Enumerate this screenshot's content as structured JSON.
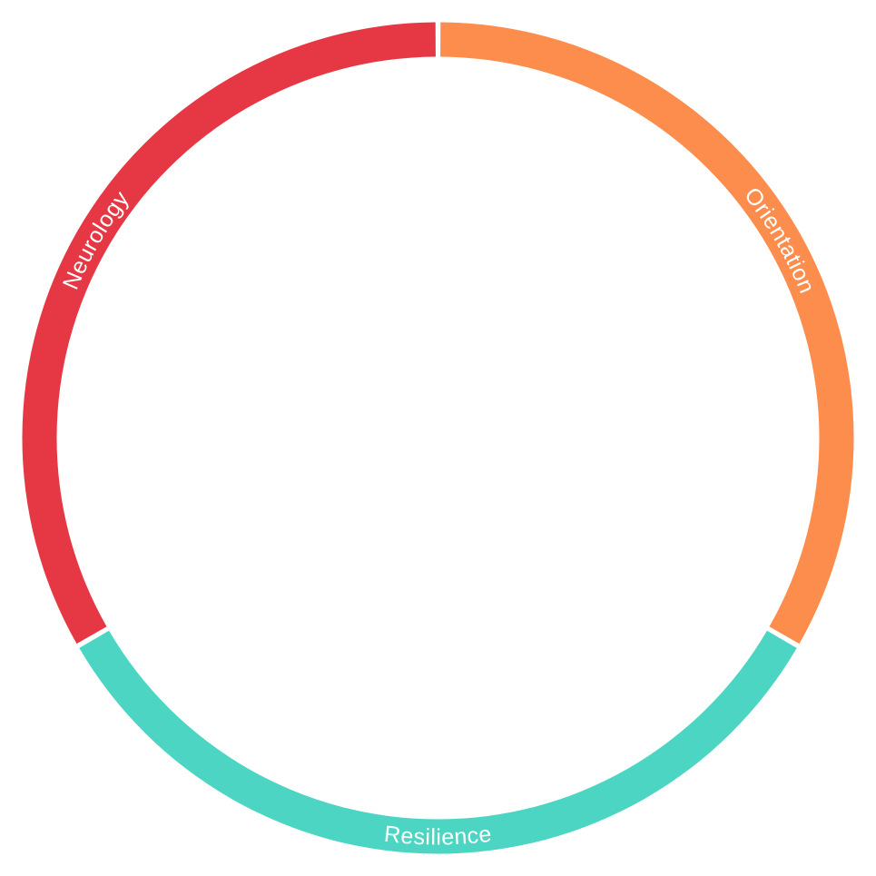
{
  "chart_data": {
    "type": "pie",
    "variant": "ring",
    "categories": [
      "Orientation",
      "Resilience",
      "Neurology"
    ],
    "values": [
      1,
      1,
      1
    ],
    "colors": [
      "#fc8d4d",
      "#4dd5c3",
      "#e53844"
    ],
    "legend": "none",
    "labels_on_segments": true
  }
}
